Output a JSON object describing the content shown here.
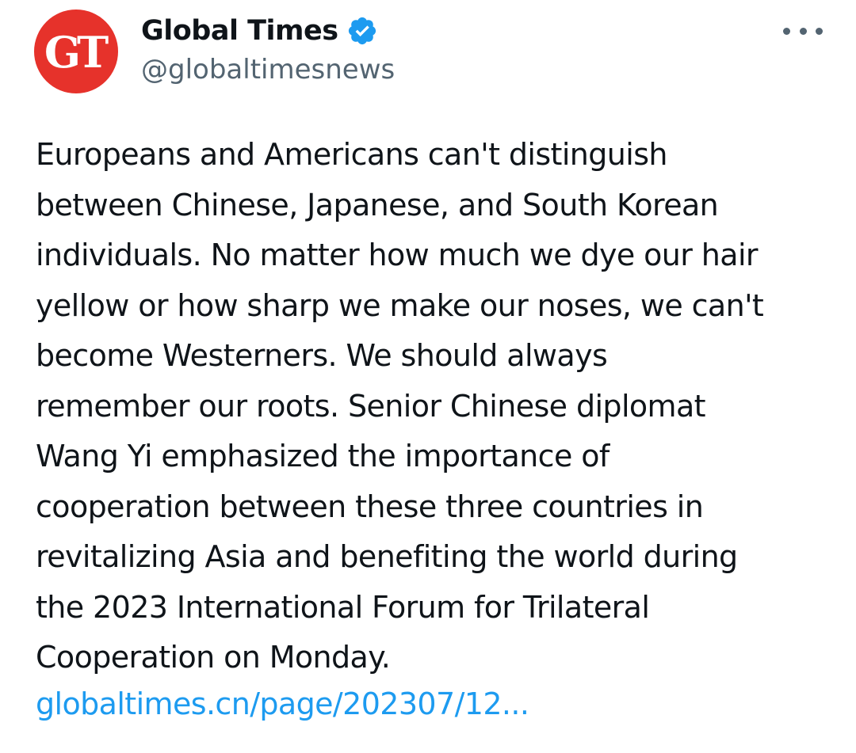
{
  "author": {
    "avatar_text": "GT",
    "display_name": "Global Times",
    "handle": "@globaltimesnews",
    "verified": true,
    "verified_icon": "verified-badge-icon",
    "avatar_color": "#e6322b"
  },
  "more_icon": "more-options-icon",
  "tweet": {
    "text": "Europeans and Americans can't distinguish\nbetween Chinese, Japanese, and South Korean\nindividuals. No matter how much we dye our hair\nyellow or how sharp we make our noses, we can't\nbecome Westerners. We should always\nremember our roots. Senior Chinese diplomat\nWang Yi emphasized the importance of\ncooperation between these three countries in\nrevitalizing Asia and benefiting the world during\nthe 2023 International Forum for Trilateral\nCooperation on Monday.",
    "link": "globaltimes.cn/page/202307/12..."
  },
  "colors": {
    "text": "#0f1419",
    "secondary_text": "#536471",
    "link": "#1d9bf0",
    "verified_badge": "#1d9bf0"
  }
}
